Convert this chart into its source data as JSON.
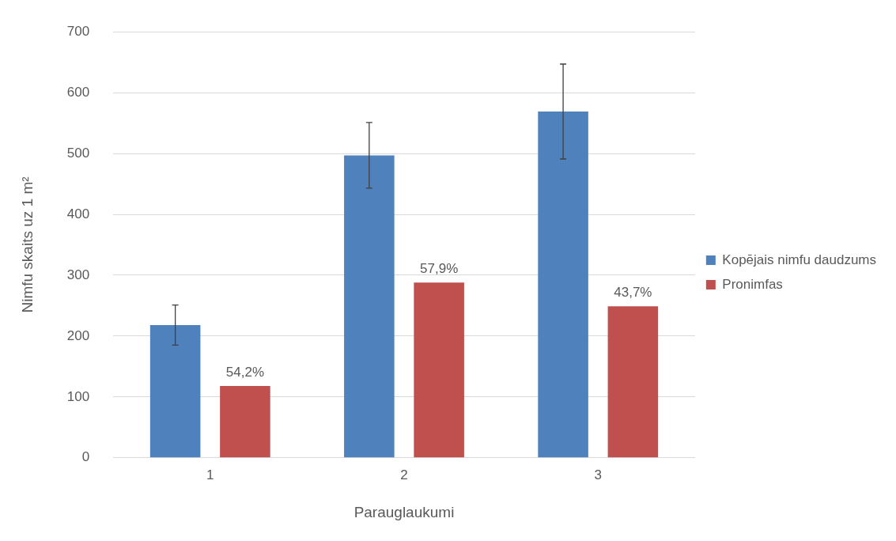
{
  "chart_data": {
    "type": "bar",
    "xlabel": "Parauglaukumi",
    "ylabel": "Nimfu skaits uz 1 m²",
    "categories": [
      "1",
      "2",
      "3"
    ],
    "series": [
      {
        "name": "Kopējais nimfu daudzums",
        "color": "#4f81bd",
        "values": [
          218,
          497,
          569
        ],
        "errors": [
          33,
          54,
          78
        ]
      },
      {
        "name": "Pronimfas",
        "color": "#c0504d",
        "values": [
          118,
          288,
          249
        ]
      }
    ],
    "annotations": [
      "54,2%",
      "57,9%",
      "43,7%"
    ],
    "ylim": [
      0,
      700
    ],
    "yticks": [
      0,
      100,
      200,
      300,
      400,
      500,
      600,
      700
    ],
    "grid": "y",
    "legend": "right"
  }
}
